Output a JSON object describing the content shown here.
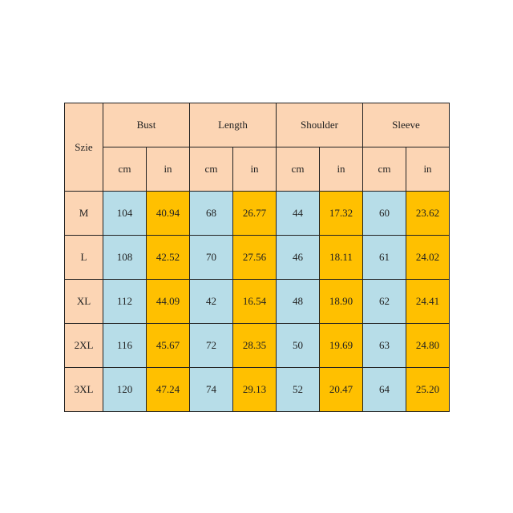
{
  "size_header": "Szie",
  "measures": [
    "Bust",
    "Length",
    "Shoulder",
    "Sleeve"
  ],
  "units": [
    "cm",
    "in"
  ],
  "rows": [
    {
      "size": "M",
      "values": [
        "104",
        "40.94",
        "68",
        "26.77",
        "44",
        "17.32",
        "60",
        "23.62"
      ]
    },
    {
      "size": "L",
      "values": [
        "108",
        "42.52",
        "70",
        "27.56",
        "46",
        "18.11",
        "61",
        "24.02"
      ]
    },
    {
      "size": "XL",
      "values": [
        "112",
        "44.09",
        "42",
        "16.54",
        "48",
        "18.90",
        "62",
        "24.41"
      ]
    },
    {
      "size": "2XL",
      "values": [
        "116",
        "45.67",
        "72",
        "28.35",
        "50",
        "19.69",
        "63",
        "24.80"
      ]
    },
    {
      "size": "3XL",
      "values": [
        "120",
        "47.24",
        "74",
        "29.13",
        "52",
        "20.47",
        "64",
        "25.20"
      ]
    }
  ],
  "colors": {
    "header": "#fcd5b4",
    "cm_cells": "#b7dde8",
    "in_cells": "#ffc000"
  }
}
